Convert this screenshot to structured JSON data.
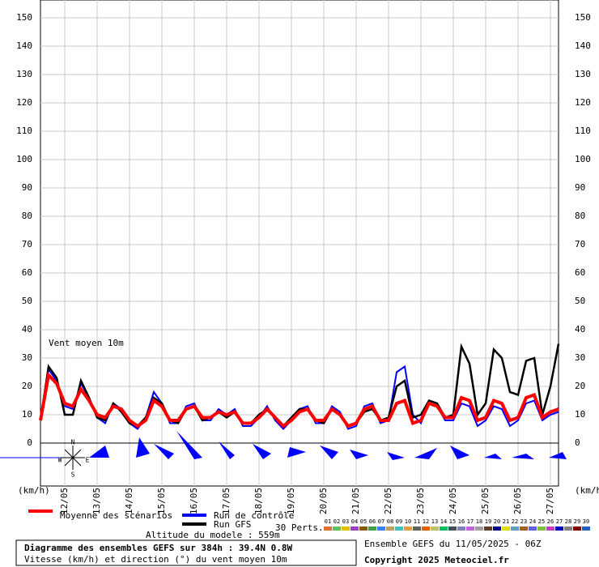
{
  "chart_data": {
    "type": "line",
    "title": "Diagramme des ensembles GEFS sur 384h : 39.4N 0.8W",
    "subtitle": "Vitesse (km/h) et direction (°) du vent moyen 10m",
    "run_label": "Ensemble GEFS du 11/05/2025 - 06Z",
    "copyright": "Copyright 2025 Meteociel.fr",
    "altitude": "Altitude du modele : 559m",
    "annotation": "Vent moyen 10m",
    "y_unit_left": "(km/h)",
    "y_unit_right": "(km/h)",
    "compass": [
      "N",
      "W",
      "E",
      "S"
    ],
    "perturbations_label": "30 Perts.",
    "ylim": [
      0,
      150
    ],
    "yticks": [
      0,
      10,
      20,
      30,
      40,
      50,
      60,
      70,
      80,
      90,
      100,
      110,
      120,
      130,
      140,
      150
    ],
    "xlim": [
      0,
      384
    ],
    "xticks": [
      {
        "value": 18,
        "label": "12/05"
      },
      {
        "value": 42,
        "label": "13/05"
      },
      {
        "value": 66,
        "label": "14/05"
      },
      {
        "value": 90,
        "label": "15/05"
      },
      {
        "value": 114,
        "label": "16/05"
      },
      {
        "value": 138,
        "label": "17/05"
      },
      {
        "value": 162,
        "label": "18/05"
      },
      {
        "value": 186,
        "label": "19/05"
      },
      {
        "value": 210,
        "label": "20/05"
      },
      {
        "value": 234,
        "label": "21/05"
      },
      {
        "value": 258,
        "label": "22/05"
      },
      {
        "value": 282,
        "label": "23/05"
      },
      {
        "value": 306,
        "label": "24/05"
      },
      {
        "value": 330,
        "label": "25/05"
      },
      {
        "value": 354,
        "label": "26/05"
      },
      {
        "value": 378,
        "label": "27/05"
      }
    ],
    "grid": true,
    "x": [
      0,
      6,
      12,
      18,
      24,
      30,
      36,
      42,
      48,
      54,
      60,
      66,
      72,
      78,
      84,
      90,
      96,
      102,
      108,
      114,
      120,
      126,
      132,
      138,
      144,
      150,
      156,
      162,
      168,
      174,
      180,
      186,
      192,
      198,
      204,
      210,
      216,
      222,
      228,
      234,
      240,
      246,
      252,
      258,
      264,
      270,
      276,
      282,
      288,
      294,
      300,
      306,
      312,
      318,
      324,
      330,
      336,
      342,
      348,
      354,
      360,
      366,
      372,
      378,
      384
    ],
    "series": [
      {
        "name": "Run de contrôle",
        "color": "#0000ff",
        "values": [
          8,
          26,
          22,
          13,
          12,
          21,
          16,
          9,
          7,
          14,
          12,
          7,
          5,
          9,
          18,
          14,
          7,
          7,
          13,
          14,
          8,
          8,
          12,
          10,
          12,
          6,
          6,
          9,
          13,
          8,
          5,
          8,
          12,
          13,
          7,
          7,
          13,
          11,
          5,
          6,
          13,
          14,
          7,
          8,
          25,
          27,
          10,
          7,
          14,
          13,
          8,
          8,
          14,
          13,
          6,
          8,
          13,
          12,
          6,
          8,
          14,
          15,
          8,
          10,
          11
        ]
      },
      {
        "name": "Run GFS",
        "color": "#000000",
        "values": [
          8,
          27,
          23,
          10,
          10,
          22,
          16,
          9,
          8,
          14,
          11,
          7,
          6,
          9,
          16,
          14,
          8,
          7,
          12,
          13,
          8,
          9,
          11,
          9,
          11,
          7,
          7,
          10,
          12,
          9,
          6,
          9,
          12,
          12,
          8,
          7,
          12,
          10,
          6,
          7,
          11,
          12,
          8,
          9,
          20,
          22,
          9,
          10,
          15,
          14,
          9,
          10,
          34,
          28,
          10,
          14,
          33,
          30,
          18,
          17,
          29,
          30,
          10,
          20,
          35
        ]
      },
      {
        "name": "Moyenne des scénarios",
        "color": "#ff0000",
        "values": [
          8,
          24,
          21,
          14,
          13,
          19,
          15,
          10,
          9,
          13,
          12,
          8,
          6,
          8,
          15,
          13,
          8,
          8,
          12,
          13,
          9,
          9,
          11,
          10,
          11,
          7,
          7,
          9,
          12,
          9,
          6,
          8,
          11,
          12,
          8,
          8,
          12,
          10,
          6,
          7,
          12,
          13,
          8,
          8,
          14,
          15,
          7,
          8,
          14,
          13,
          9,
          9,
          16,
          15,
          8,
          9,
          15,
          14,
          8,
          9,
          16,
          17,
          9,
          11,
          12
        ]
      }
    ],
    "perturbations": [
      {
        "name": "01",
        "color": "#e07030"
      },
      {
        "name": "02",
        "color": "#60c060"
      },
      {
        "name": "03",
        "color": "#e0c000"
      },
      {
        "name": "04",
        "color": "#a040c0"
      },
      {
        "name": "05",
        "color": "#806000"
      },
      {
        "name": "06",
        "color": "#40a040"
      },
      {
        "name": "07",
        "color": "#4080ff"
      },
      {
        "name": "08",
        "color": "#c0a060"
      },
      {
        "name": "09",
        "color": "#40c0c0"
      },
      {
        "name": "10",
        "color": "#e0a040"
      },
      {
        "name": "11",
        "color": "#606060"
      },
      {
        "name": "12",
        "color": "#e06000"
      },
      {
        "name": "13",
        "color": "#c0c060"
      },
      {
        "name": "14",
        "color": "#00c060"
      },
      {
        "name": "15",
        "color": "#405060"
      },
      {
        "name": "16",
        "color": "#8080c0"
      },
      {
        "name": "17",
        "color": "#c060e0"
      },
      {
        "name": "18",
        "color": "#a0a0a0"
      },
      {
        "name": "19",
        "color": "#604020"
      },
      {
        "name": "20",
        "color": "#000080"
      },
      {
        "name": "21",
        "color": "#e0e000"
      },
      {
        "name": "22",
        "color": "#60a0c0"
      },
      {
        "name": "23",
        "color": "#a06020"
      },
      {
        "name": "24",
        "color": "#6060e0"
      },
      {
        "name": "25",
        "color": "#80c040"
      },
      {
        "name": "26",
        "color": "#c040c0"
      },
      {
        "name": "27",
        "color": "#0000c0"
      },
      {
        "name": "28",
        "color": "#808080"
      },
      {
        "name": "29",
        "color": "#800000"
      },
      {
        "name": "30",
        "color": "#2060c0"
      }
    ]
  }
}
